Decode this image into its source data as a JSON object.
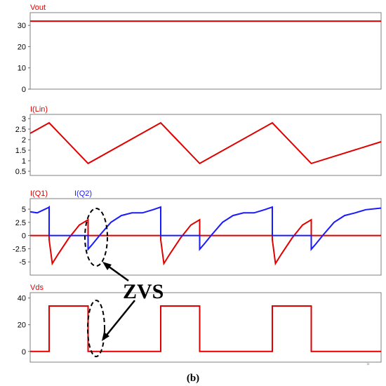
{
  "colors": {
    "q1": "#e00000",
    "q2": "#1a1aff",
    "frame": "#7f7f7f",
    "background": "#ffffff"
  },
  "caption": "(b)",
  "corner_mark": "»",
  "annotation": {
    "text": "ZVS"
  },
  "chart_data": [
    {
      "type": "line",
      "x_range": [
        0,
        100
      ],
      "ylim": [
        0,
        36
      ],
      "yticks": [
        "0",
        "10",
        "20",
        "30"
      ],
      "ytick_values": [
        0,
        10,
        20,
        30
      ],
      "series": [
        {
          "name": "Vout",
          "color": "#e00000",
          "x": [
            0,
            100
          ],
          "y": [
            32,
            32
          ]
        }
      ]
    },
    {
      "type": "line",
      "x_range": [
        0,
        100
      ],
      "ylim": [
        0.3,
        3.2
      ],
      "yticks": [
        "0.5",
        "1",
        "1.5",
        "2",
        "2.5",
        "3"
      ],
      "ytick_values": [
        0.5,
        1,
        1.5,
        2,
        2.5,
        3
      ],
      "series": [
        {
          "name": "I(Lin)",
          "color": "#e00000",
          "x": [
            0,
            5.4,
            16.5,
            37.2,
            48.3,
            69.0,
            80.1,
            100
          ],
          "y": [
            2.3,
            2.8,
            0.87,
            2.8,
            0.87,
            2.8,
            0.87,
            1.9
          ]
        }
      ]
    },
    {
      "type": "line",
      "x_range": [
        0,
        100
      ],
      "ylim": [
        -7.5,
        7
      ],
      "yticks": [
        "-5",
        "-2.5",
        "0",
        "2.5",
        "5"
      ],
      "ytick_values": [
        -5,
        -2.5,
        0,
        2.5,
        5
      ],
      "series": [
        {
          "name": "I(Q1)",
          "color": "#e00000",
          "x": [
            0,
            5.4,
            5.4,
            6.3,
            8.0,
            11.0,
            14.0,
            16.5,
            16.5,
            37.2,
            37.2,
            38.1,
            39.8,
            42.8,
            45.8,
            48.3,
            48.3,
            69.0,
            69.0,
            69.9,
            71.6,
            74.6,
            77.6,
            80.1,
            80.1,
            100
          ],
          "y": [
            0,
            0,
            -0.8,
            -5.3,
            -3.5,
            -0.5,
            2.0,
            3.0,
            0,
            0,
            -0.8,
            -5.3,
            -3.5,
            -0.5,
            2.0,
            3.0,
            0,
            0,
            -0.8,
            -5.3,
            -3.5,
            -0.5,
            2.0,
            3.0,
            0,
            0
          ]
        },
        {
          "name": "I(Q2)",
          "color": "#1a1aff",
          "x": [
            0,
            2.0,
            5.2,
            5.4,
            5.4,
            16.5,
            16.5,
            17.8,
            20.0,
            23.0,
            26.0,
            29.0,
            32.0,
            35.0,
            37.2,
            37.2,
            48.3,
            48.3,
            49.6,
            51.8,
            54.8,
            57.8,
            60.8,
            63.8,
            66.8,
            69.0,
            69.0,
            80.1,
            80.1,
            81.4,
            83.6,
            86.6,
            89.6,
            92.6,
            95.6,
            100
          ],
          "y": [
            4.5,
            4.3,
            5.3,
            5.4,
            0,
            0,
            -2.6,
            -1.6,
            0.2,
            2.5,
            3.8,
            4.3,
            4.3,
            4.9,
            5.4,
            0,
            0,
            -2.6,
            -1.6,
            0.2,
            2.5,
            3.8,
            4.3,
            4.3,
            4.9,
            5.4,
            0,
            0,
            -2.6,
            -1.6,
            0.2,
            2.5,
            3.8,
            4.3,
            4.9,
            5.2
          ]
        }
      ]
    },
    {
      "type": "line",
      "x_range": [
        0,
        100
      ],
      "ylim": [
        -8,
        44
      ],
      "yticks": [
        "0",
        "20",
        "40"
      ],
      "ytick_values": [
        0,
        20,
        40
      ],
      "series": [
        {
          "name": "Vds",
          "color": "#e00000",
          "x": [
            0,
            5.4,
            5.4,
            16.5,
            16.5,
            37.2,
            37.2,
            48.3,
            48.3,
            69.0,
            69.0,
            80.1,
            80.1,
            100
          ],
          "y": [
            0,
            0,
            34,
            34,
            0,
            0,
            34,
            34,
            0,
            0,
            34,
            34,
            0,
            0
          ]
        }
      ]
    }
  ]
}
